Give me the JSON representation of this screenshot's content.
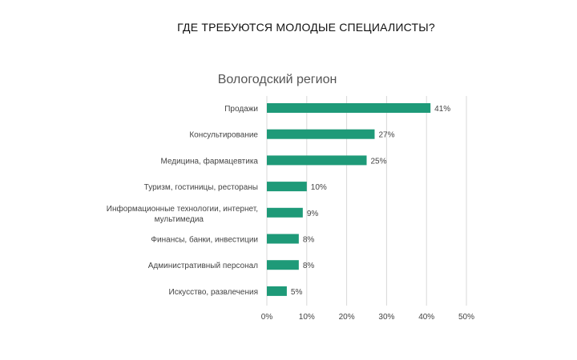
{
  "page": {
    "title": "ГДЕ ТРЕБУЮТСЯ МОЛОДЫЕ СПЕЦИАЛИСТЫ?"
  },
  "chart_data": {
    "type": "bar",
    "orientation": "horizontal",
    "title": "Вологодский регион",
    "xlabel": "",
    "ylabel": "",
    "categories": [
      "Продажи",
      "Консультирование",
      "Медицина, фармацевтика",
      "Туризм, гостиницы, рестораны",
      "Информационные технологии, интернет, мультимедиа",
      "Финансы, банки, инвестиции",
      "Административный персонал",
      "Искусство, развлечения"
    ],
    "values": [
      41,
      27,
      25,
      10,
      9,
      8,
      8,
      5
    ],
    "value_labels": [
      "41%",
      "27%",
      "25%",
      "10%",
      "9%",
      "8%",
      "8%",
      "5%"
    ],
    "xlim": [
      0,
      50
    ],
    "x_ticks": [
      0,
      10,
      20,
      30,
      40,
      50
    ],
    "x_tick_labels": [
      "0%",
      "10%",
      "20%",
      "30%",
      "40%",
      "50%"
    ],
    "grid": true,
    "legend": "none",
    "colors": {
      "bar": "#1e9a78"
    }
  }
}
